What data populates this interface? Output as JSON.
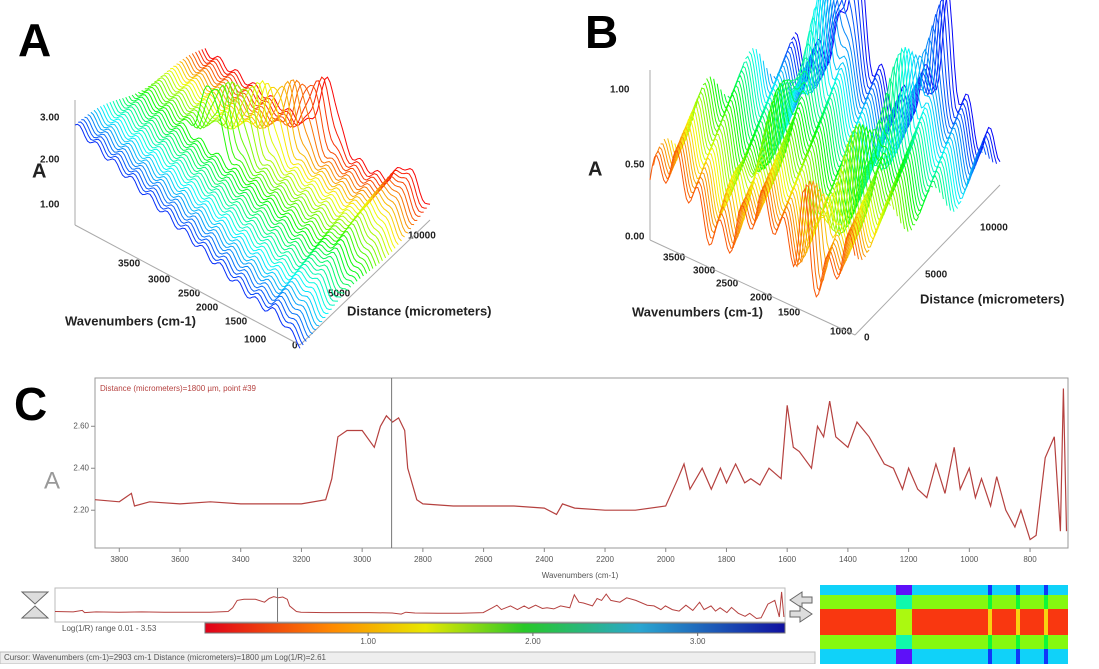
{
  "panel_a": {
    "label": "A",
    "vertical_label": "A",
    "vertical_ticks": [
      "1.00",
      "2.00",
      "3.00"
    ],
    "wavenumber_label": "Wavenumbers (cm-1)",
    "wavenumber_ticks": [
      "3500",
      "3000",
      "2500",
      "2000",
      "1500",
      "1000"
    ],
    "distance_label": "Distance (micrometers)",
    "distance_ticks": [
      "0",
      "5000",
      "10000"
    ]
  },
  "panel_b": {
    "label": "B",
    "vertical_label": "A",
    "vertical_ticks": [
      "0.00",
      "0.50",
      "1.00"
    ],
    "wavenumber_label": "Wavenumbers (cm-1)",
    "wavenumber_ticks": [
      "3500",
      "3000",
      "2500",
      "2000",
      "1500",
      "1000"
    ],
    "distance_label": "Distance (micrometers)",
    "distance_ticks": [
      "0",
      "5000",
      "10000"
    ]
  },
  "chart_data": {
    "type": "line",
    "label": "C",
    "annotation": "Distance (micrometers)=1800 µm, point #39",
    "y_label": "A",
    "x_label": "Wavenumbers (cm-1)",
    "color": "#b5413f",
    "cursor_x": 2903,
    "xlim": [
      3880,
      675
    ],
    "ylim": [
      2.02,
      2.83
    ],
    "xticks": [
      3800,
      3600,
      3400,
      3200,
      3000,
      2800,
      2600,
      2400,
      2200,
      2000,
      1800,
      1600,
      1400,
      1200,
      1000,
      800
    ],
    "yticks": [
      {
        "value": 2.2,
        "label": "2.20"
      },
      {
        "value": 2.4,
        "label": "2.40"
      },
      {
        "value": 2.6,
        "label": "2.60"
      }
    ],
    "x": [
      3880,
      3800,
      3760,
      3750,
      3700,
      3600,
      3500,
      3400,
      3300,
      3200,
      3120,
      3100,
      3080,
      3050,
      3000,
      2960,
      2940,
      2920,
      2900,
      2880,
      2860,
      2850,
      2820,
      2800,
      2700,
      2600,
      2500,
      2400,
      2360,
      2340,
      2300,
      2200,
      2100,
      2000,
      1960,
      1940,
      1920,
      1880,
      1850,
      1820,
      1800,
      1770,
      1740,
      1720,
      1690,
      1660,
      1620,
      1600,
      1580,
      1560,
      1520,
      1500,
      1480,
      1460,
      1440,
      1400,
      1370,
      1330,
      1280,
      1250,
      1220,
      1200,
      1170,
      1140,
      1110,
      1080,
      1050,
      1030,
      1000,
      980,
      960,
      930,
      910,
      880,
      850,
      830,
      800,
      780,
      750,
      720,
      700,
      690,
      680
    ],
    "values": [
      2.25,
      2.24,
      2.28,
      2.22,
      2.24,
      2.23,
      2.24,
      2.23,
      2.23,
      2.23,
      2.25,
      2.35,
      2.55,
      2.58,
      2.58,
      2.5,
      2.6,
      2.65,
      2.62,
      2.64,
      2.58,
      2.4,
      2.25,
      2.23,
      2.22,
      2.22,
      2.22,
      2.21,
      2.18,
      2.23,
      2.21,
      2.2,
      2.2,
      2.22,
      2.35,
      2.42,
      2.3,
      2.4,
      2.3,
      2.4,
      2.33,
      2.42,
      2.33,
      2.35,
      2.32,
      2.4,
      2.35,
      2.7,
      2.5,
      2.48,
      2.4,
      2.6,
      2.55,
      2.72,
      2.55,
      2.5,
      2.62,
      2.55,
      2.42,
      2.4,
      2.3,
      2.4,
      2.3,
      2.26,
      2.42,
      2.28,
      2.5,
      2.3,
      2.4,
      2.26,
      2.35,
      2.22,
      2.36,
      2.2,
      2.12,
      2.2,
      2.06,
      2.08,
      2.45,
      2.55,
      2.1,
      2.78,
      2.1
    ]
  },
  "colorbar": {
    "range_text": "Log(1/R) range 0.01 - 3.53",
    "lim": [
      0.01,
      3.53
    ],
    "ticks": [
      {
        "value": 1,
        "label": "1.00"
      },
      {
        "value": 2,
        "label": "2.00"
      },
      {
        "value": 3,
        "label": "3.00"
      }
    ]
  },
  "status_bar": "Cursor: Wavenumbers (cm-1)=2903 cm-1  Distance (micrometers)=1800 µm  Log(1/R)=2.61"
}
